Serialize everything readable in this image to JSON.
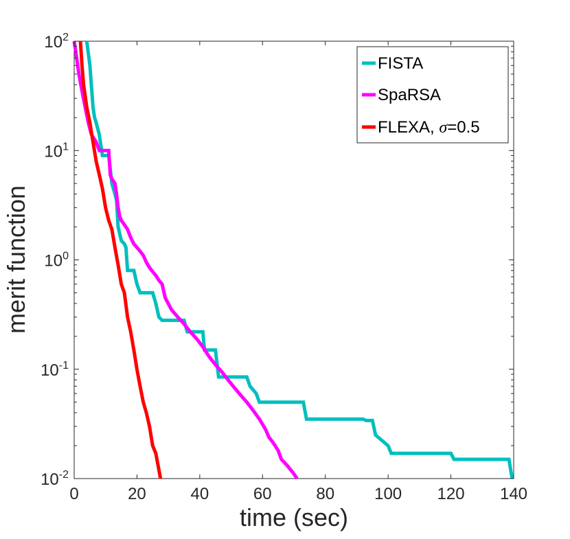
{
  "chart_data": {
    "type": "line",
    "title": "",
    "xlabel": "time (sec)",
    "ylabel": "merit function",
    "yscale": "log",
    "xlim": [
      0,
      140
    ],
    "ylim": [
      0.01,
      100
    ],
    "grid": false,
    "legend_position": "top-right",
    "x_ticks": [
      0,
      20,
      40,
      60,
      80,
      100,
      120,
      140
    ],
    "x_tick_labels": [
      "0",
      "20",
      "40",
      "60",
      "80",
      "100",
      "120",
      "140"
    ],
    "y_ticks": [
      0.01,
      0.1,
      1,
      10,
      100
    ],
    "y_tick_bases": [
      "10",
      "10",
      "10",
      "10",
      "10"
    ],
    "y_tick_exponents": [
      "-2",
      "-1",
      "0",
      "1",
      "2"
    ],
    "series": [
      {
        "name": "FISTA",
        "color": "#00BFBF",
        "x": [
          4,
          5,
          6,
          6.5,
          7,
          8,
          9,
          10,
          11,
          12,
          13,
          13.5,
          14,
          15,
          16,
          16.5,
          17,
          18,
          19,
          20,
          21,
          22,
          23,
          24,
          25,
          26,
          27,
          28,
          29,
          30,
          31,
          32,
          35,
          36,
          41,
          41.5,
          45,
          46,
          48,
          50,
          55,
          56,
          58,
          59,
          64,
          65,
          73,
          74,
          92,
          93,
          95,
          96,
          100,
          101,
          120,
          121,
          138.5,
          139.5
        ],
        "y": [
          100,
          60,
          25,
          20,
          18,
          14,
          9,
          9,
          9,
          5,
          4,
          3.5,
          2,
          1.5,
          1.4,
          1.3,
          0.8,
          0.8,
          0.8,
          0.6,
          0.5,
          0.5,
          0.5,
          0.5,
          0.5,
          0.4,
          0.3,
          0.28,
          0.28,
          0.28,
          0.28,
          0.28,
          0.28,
          0.22,
          0.22,
          0.15,
          0.15,
          0.085,
          0.085,
          0.085,
          0.085,
          0.07,
          0.06,
          0.05,
          0.05,
          0.05,
          0.05,
          0.035,
          0.035,
          0.034,
          0.034,
          0.025,
          0.02,
          0.017,
          0.017,
          0.015,
          0.015,
          0.01
        ]
      },
      {
        "name": "SpaRSA",
        "color": "#FF00FF",
        "x": [
          0,
          0.8,
          1.5,
          2.5,
          3.5,
          4.5,
          5.5,
          7,
          8,
          9.5,
          11,
          11.5,
          12,
          13,
          13.5,
          14,
          14.5,
          15,
          16,
          17,
          18,
          19,
          20,
          21,
          22,
          23,
          24,
          25,
          26,
          27,
          28,
          29,
          31,
          33,
          35,
          37,
          39,
          41,
          43,
          45,
          47,
          49,
          51,
          53,
          55,
          57,
          59,
          61,
          62,
          63,
          64,
          65,
          66,
          67,
          68,
          69,
          70,
          71
        ],
        "y": [
          100,
          70,
          50,
          35,
          25,
          18,
          14,
          12,
          10,
          10,
          10,
          6,
          5.5,
          5,
          4,
          3,
          2.5,
          2.3,
          2.1,
          1.9,
          1.6,
          1.4,
          1.3,
          1.2,
          1.1,
          0.95,
          0.85,
          0.78,
          0.72,
          0.65,
          0.6,
          0.45,
          0.35,
          0.3,
          0.26,
          0.22,
          0.19,
          0.16,
          0.13,
          0.11,
          0.095,
          0.08,
          0.068,
          0.058,
          0.05,
          0.042,
          0.035,
          0.028,
          0.024,
          0.022,
          0.02,
          0.018,
          0.015,
          0.014,
          0.013,
          0.012,
          0.011,
          0.01
        ]
      },
      {
        "name": "FLEXA, σ=0.5",
        "color": "#FF0000",
        "x": [
          2,
          2.5,
          3,
          4,
          5,
          6,
          7,
          8,
          9,
          10,
          11,
          12,
          13,
          14,
          15,
          16,
          17,
          18,
          19,
          20,
          21,
          22,
          23,
          24,
          25,
          26,
          27,
          27.5
        ],
        "y": [
          100,
          60,
          40,
          25,
          18,
          12,
          8,
          6,
          4.5,
          3,
          2.3,
          1.9,
          1.3,
          0.9,
          0.6,
          0.5,
          0.3,
          0.22,
          0.15,
          0.1,
          0.07,
          0.05,
          0.04,
          0.03,
          0.02,
          0.017,
          0.012,
          0.01
        ]
      }
    ]
  }
}
